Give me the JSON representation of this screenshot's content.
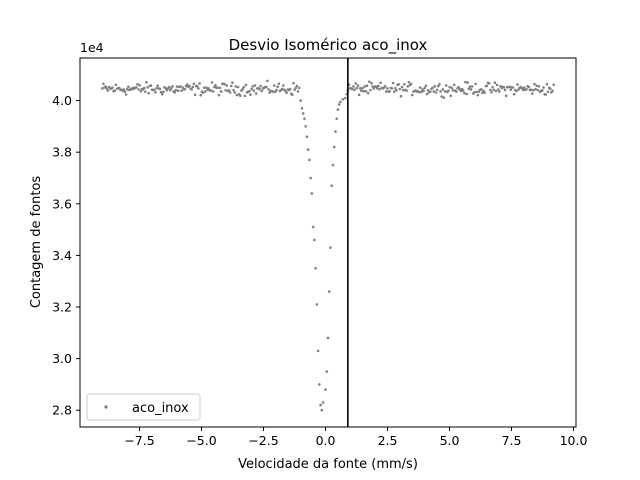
{
  "chart_data": {
    "type": "scatter",
    "title": "Desvio Isomérico aco_inox",
    "xlabel": "Velocidade da fonte (mm/s)",
    "ylabel": "Contagem de fontos",
    "y_offset_label": "1e4",
    "xlim": [
      -9.9,
      10.1
    ],
    "ylim": [
      27350,
      41650
    ],
    "x_ticks": [
      -7.5,
      -5.0,
      -2.5,
      0.0,
      2.5,
      5.0,
      7.5,
      10.0
    ],
    "x_tick_labels": [
      "−7.5",
      "−5.0",
      "−2.5",
      "0.0",
      "2.5",
      "5.0",
      "7.5",
      "10.0"
    ],
    "y_ticks": [
      28000,
      30000,
      32000,
      34000,
      36000,
      38000,
      40000
    ],
    "y_tick_labels": [
      "2.8",
      "3.0",
      "3.2",
      "3.4",
      "3.6",
      "3.8",
      "4.0"
    ],
    "vertical_line_x": 0.9,
    "legend_position": "lower-left",
    "grid": false,
    "colors": {
      "points": "#808080",
      "vline": "#000000",
      "axes": "#000000"
    },
    "series": [
      {
        "name": "aco_inox",
        "baseline": 40450,
        "noise_amplitude": 250,
        "x_range": [
          -9.0,
          9.2
        ],
        "n_points": 400,
        "dip_points": [
          [
            -1.0,
            40000
          ],
          [
            -0.95,
            39700
          ],
          [
            -0.9,
            39500
          ],
          [
            -0.85,
            39300
          ],
          [
            -0.8,
            39000
          ],
          [
            -0.75,
            38600
          ],
          [
            -0.7,
            38100
          ],
          [
            -0.65,
            37700
          ],
          [
            -0.6,
            37000
          ],
          [
            -0.55,
            36400
          ],
          [
            -0.5,
            35100
          ],
          [
            -0.45,
            34600
          ],
          [
            -0.4,
            33500
          ],
          [
            -0.35,
            32100
          ],
          [
            -0.3,
            30300
          ],
          [
            -0.25,
            29000
          ],
          [
            -0.2,
            28200
          ],
          [
            -0.15,
            28000
          ],
          [
            -0.1,
            28300
          ],
          [
            0.0,
            28800
          ],
          [
            0.05,
            29500
          ],
          [
            0.1,
            30800
          ],
          [
            0.15,
            32600
          ],
          [
            0.2,
            34300
          ],
          [
            0.25,
            36700
          ],
          [
            0.3,
            37500
          ],
          [
            0.35,
            38200
          ],
          [
            0.4,
            38800
          ],
          [
            0.45,
            39300
          ],
          [
            0.5,
            39650
          ],
          [
            0.55,
            39850
          ],
          [
            0.6,
            39950
          ],
          [
            0.7,
            40050
          ],
          [
            0.8,
            40100
          ]
        ]
      }
    ]
  }
}
